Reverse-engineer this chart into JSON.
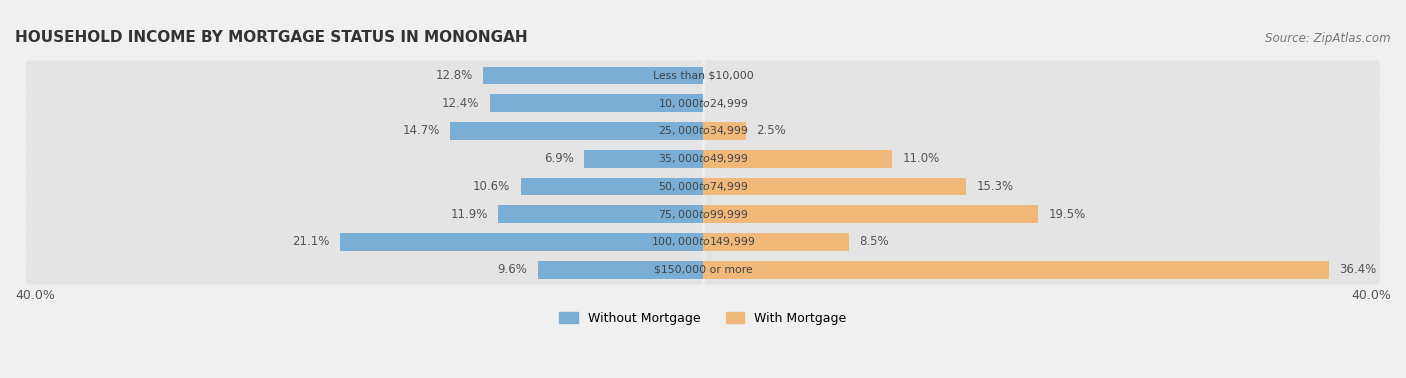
{
  "title": "HOUSEHOLD INCOME BY MORTGAGE STATUS IN MONONGAH",
  "source": "Source: ZipAtlas.com",
  "categories": [
    "Less than $10,000",
    "$10,000 to $24,999",
    "$25,000 to $34,999",
    "$35,000 to $49,999",
    "$50,000 to $74,999",
    "$75,000 to $99,999",
    "$100,000 to $149,999",
    "$150,000 or more"
  ],
  "without_mortgage": [
    12.8,
    12.4,
    14.7,
    6.9,
    10.6,
    11.9,
    21.1,
    9.6
  ],
  "with_mortgage": [
    0.0,
    0.0,
    2.5,
    11.0,
    15.3,
    19.5,
    8.5,
    36.4
  ],
  "color_without": "#7aaed4",
  "color_with": "#f0b97a",
  "axis_max": 40.0,
  "legend_without": "Without Mortgage",
  "legend_with": "With Mortgage",
  "axis_label_left": "40.0%",
  "axis_label_right": "40.0%"
}
